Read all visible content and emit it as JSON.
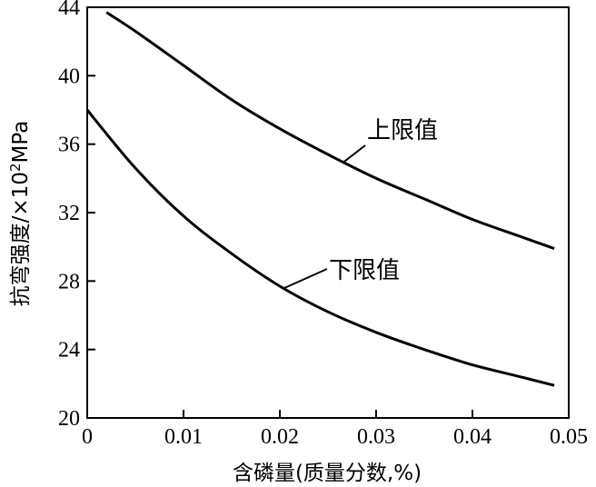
{
  "chart_data": {
    "type": "line",
    "title": "",
    "xlabel": "含磷量(质量分数,%)",
    "ylabel_main": "抗弯强度/×10",
    "ylabel_sup": "2",
    "ylabel_unit": "MPa",
    "xlim": [
      0,
      0.05
    ],
    "ylim": [
      20,
      44
    ],
    "x_ticks": [
      "0",
      "0.01",
      "0.02",
      "0.03",
      "0.04",
      "0.05"
    ],
    "y_ticks": [
      "20",
      "24",
      "28",
      "32",
      "36",
      "40",
      "44"
    ],
    "grid": false,
    "series": [
      {
        "name": "上限值",
        "x": [
          0.002,
          0.005,
          0.01,
          0.015,
          0.02,
          0.025,
          0.03,
          0.035,
          0.04,
          0.045,
          0.0485
        ],
        "values": [
          43.7,
          42.6,
          40.6,
          38.6,
          36.9,
          35.4,
          34.0,
          32.8,
          31.6,
          30.6,
          29.9
        ]
      },
      {
        "name": "下限值",
        "x": [
          0,
          0.005,
          0.01,
          0.015,
          0.02,
          0.025,
          0.03,
          0.035,
          0.04,
          0.045,
          0.0485
        ],
        "values": [
          38.0,
          34.6,
          31.8,
          29.6,
          27.7,
          26.2,
          25.0,
          24.0,
          23.1,
          22.4,
          21.9
        ]
      }
    ]
  }
}
